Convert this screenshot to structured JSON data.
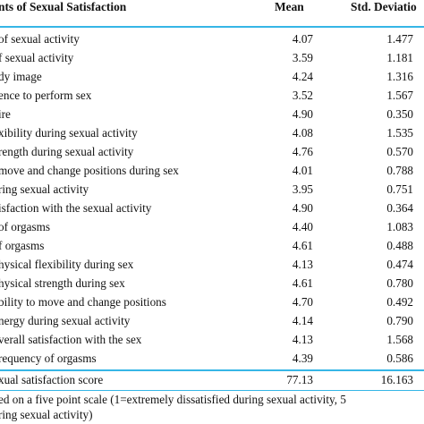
{
  "table": {
    "headers": {
      "item": "nts of Sexual Satisfaction",
      "mean": "Mean",
      "sd": "Std. Deviatio"
    },
    "rows": [
      {
        "label": "of sexual activity",
        "mean": "4.07",
        "sd": "1.477"
      },
      {
        "label": "f sexual activity",
        "mean": "3.59",
        "sd": "1.181"
      },
      {
        "label": "dy image",
        "mean": "4.24",
        "sd": "1.316"
      },
      {
        "label": "ence to perform sex",
        "mean": "3.52",
        "sd": "1.567"
      },
      {
        "label": "ire",
        "mean": "4.90",
        "sd": "0.350"
      },
      {
        "label": "xibility during sexual activity",
        "mean": "4.08",
        "sd": "1.535"
      },
      {
        "label": "rength during sexual activity",
        "mean": "4.76",
        "sd": "0.570"
      },
      {
        "label": "move and change positions during sex",
        "mean": "4.01",
        "sd": "0.788"
      },
      {
        "label": "ring sexual activity",
        "mean": "3.95",
        "sd": "0.751"
      },
      {
        "label": "isfaction with the sexual activity",
        "mean": "4.90",
        "sd": "0.364"
      },
      {
        "label": "of orgasms",
        "mean": "4.40",
        "sd": "1.083"
      },
      {
        "label": "f orgasms",
        "mean": "4.61",
        "sd": "0.488"
      },
      {
        "label": "hysical flexibility during sex",
        "mean": "4.13",
        "sd": "0.474"
      },
      {
        "label": "hysical strength during sex",
        "mean": "4.61",
        "sd": "0.780"
      },
      {
        "label": "bility to move and change positions",
        "mean": "4.70",
        "sd": "0.492"
      },
      {
        "label": "nergy during sexual activity",
        "mean": "4.14",
        "sd": "0.790"
      },
      {
        "label": "verall satisfaction with the sex",
        "mean": "4.13",
        "sd": "1.568"
      },
      {
        "label": "requency of orgasms",
        "mean": "4.39",
        "sd": "0.586"
      }
    ],
    "total": {
      "label": "xual satisfaction score",
      "mean": "77.13",
      "sd": "16.163"
    }
  },
  "footnote": {
    "line1": "ed on a five point scale (1=extremely dissatisfied during sexual activity, 5",
    "line2": "ring sexual activity)"
  },
  "colors": {
    "rule": "#36b6e6"
  }
}
